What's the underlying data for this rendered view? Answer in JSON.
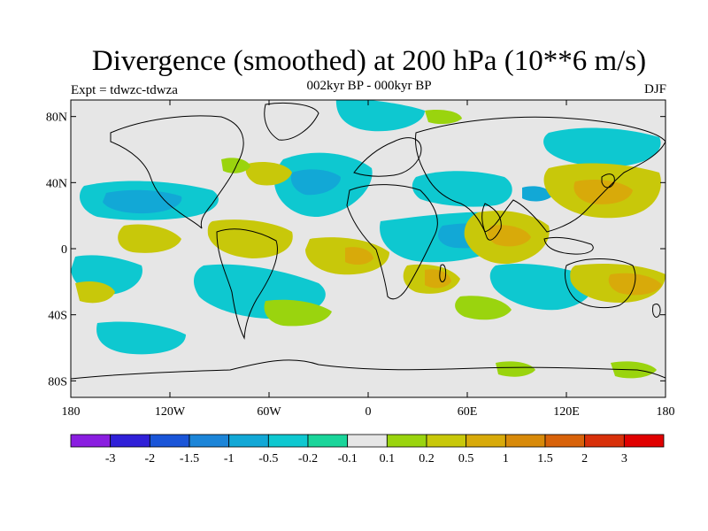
{
  "header": {
    "title": "Divergence (smoothed) at 200 hPa (10**6 m/s)",
    "subtitle": "002kyr BP - 000kyr BP",
    "left_label": "Expt = tdwzc-tdwza",
    "right_label": "DJF"
  },
  "map": {
    "projection": "cylindrical-equidistant",
    "lon_range": [
      -180,
      180
    ],
    "lat_range": [
      -90,
      90
    ],
    "x_ticks": [
      "180",
      "120W",
      "60W",
      "0",
      "60E",
      "120E",
      "180"
    ],
    "y_ticks": [
      "80N",
      "40N",
      "0",
      "40S",
      "80S"
    ],
    "ocean_color": "#e6e6e6",
    "coastline_color": "#000000"
  },
  "colorbar": {
    "labels": [
      "-3",
      "-2",
      "-1.5",
      "-1",
      "-0.5",
      "-0.2",
      "-0.1",
      "0.1",
      "0.2",
      "0.5",
      "1",
      "1.5",
      "2",
      "3"
    ],
    "colors": [
      "#8a1ee0",
      "#3020d8",
      "#1a55d8",
      "#1c85d8",
      "#12a8d6",
      "#0ec8d0",
      "#1ad59a",
      "#e6e6e6",
      "#9ad40e",
      "#c8c80a",
      "#d8aa0a",
      "#d88a0a",
      "#d8620a",
      "#d8300a",
      "#e00000"
    ]
  }
}
